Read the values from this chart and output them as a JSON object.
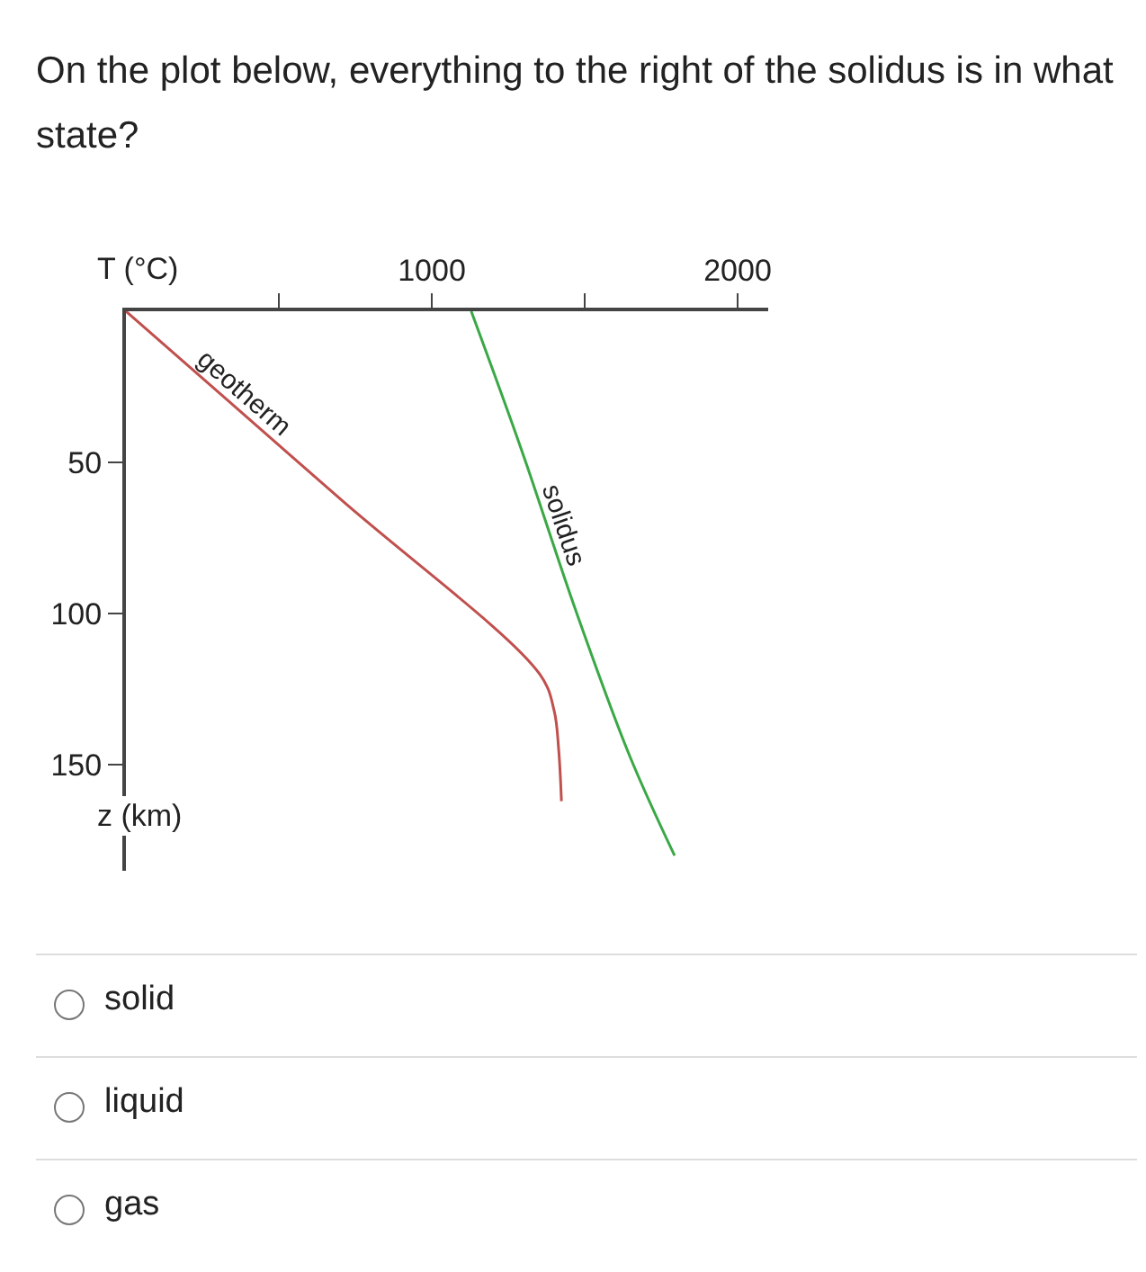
{
  "chart_data": {
    "type": "line",
    "title": "On the plot below, everything to the right of the solidus is in what state?",
    "xlabel": "T (°C)",
    "ylabel": "z (km)",
    "series": [
      {
        "name": "geotherm",
        "color": "#c0504d",
        "x": [
          0,
          700,
          1353,
          1400,
          1415,
          1424
        ],
        "values": [
          0,
          62,
          120,
          132,
          145,
          162
        ]
      },
      {
        "name": "solidus",
        "color": "#3aa845",
        "x": [
          1129,
          1294,
          1471,
          1647,
          1794
        ],
        "values": [
          0,
          46,
          99,
          147,
          180
        ]
      }
    ],
    "annotations": [
      "solid",
      "liquid",
      "gas"
    ],
    "xlim": [
      0,
      2100
    ],
    "xticks": [
      {
        "value": 500,
        "label": null
      },
      1000,
      {
        "value": 1500,
        "label": null
      },
      2000
    ],
    "ylim": [
      185,
      0
    ],
    "yticks": [
      50,
      100,
      150
    ],
    "grid": false,
    "legend": false,
    "marker": "none",
    "line_style": "solid"
  }
}
